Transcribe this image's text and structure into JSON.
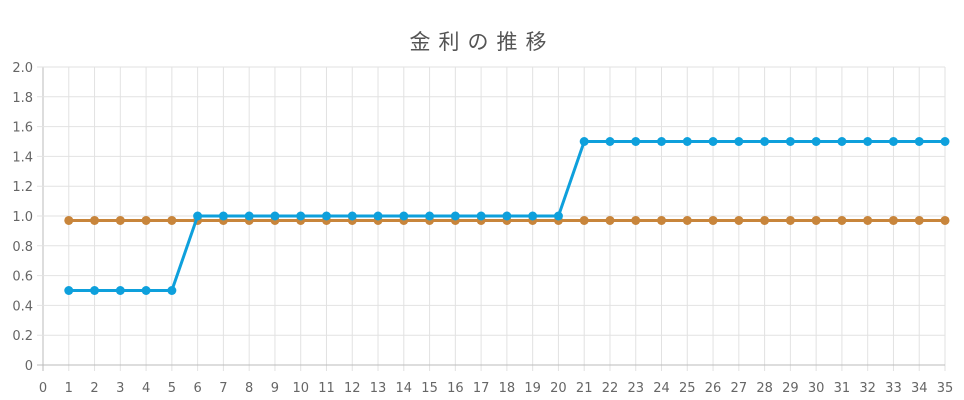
{
  "chart_data": {
    "type": "line",
    "title": "金利の推移",
    "xlabel": "",
    "ylabel": "",
    "x": [
      1,
      2,
      3,
      4,
      5,
      6,
      7,
      8,
      9,
      10,
      11,
      12,
      13,
      14,
      15,
      16,
      17,
      18,
      19,
      20,
      21,
      22,
      23,
      24,
      25,
      26,
      27,
      28,
      29,
      30,
      31,
      32,
      33,
      34,
      35
    ],
    "xlim": [
      0,
      35
    ],
    "ylim": [
      0,
      2.0
    ],
    "x_ticks": [
      "0",
      "1",
      "2",
      "3",
      "4",
      "5",
      "6",
      "7",
      "8",
      "9",
      "10",
      "11",
      "12",
      "13",
      "14",
      "15",
      "16",
      "17",
      "18",
      "19",
      "20",
      "21",
      "22",
      "23",
      "24",
      "25",
      "26",
      "27",
      "28",
      "29",
      "30",
      "31",
      "32",
      "33",
      "34",
      "35"
    ],
    "y_ticks": [
      "0",
      "0.2",
      "0.4",
      "0.6",
      "0.8",
      "1.0",
      "1.2",
      "1.4",
      "1.6",
      "1.8",
      "2.0"
    ],
    "grid": true,
    "legend": "none",
    "series": [
      {
        "color": "#c8853b",
        "values": [
          0.97,
          0.97,
          0.97,
          0.97,
          0.97,
          0.97,
          0.97,
          0.97,
          0.97,
          0.97,
          0.97,
          0.97,
          0.97,
          0.97,
          0.97,
          0.97,
          0.97,
          0.97,
          0.97,
          0.97,
          0.97,
          0.97,
          0.97,
          0.97,
          0.97,
          0.97,
          0.97,
          0.97,
          0.97,
          0.97,
          0.97,
          0.97,
          0.97,
          0.97,
          0.97
        ]
      },
      {
        "color": "#0ea0dc",
        "values": [
          0.5,
          0.5,
          0.5,
          0.5,
          0.5,
          1.0,
          1.0,
          1.0,
          1.0,
          1.0,
          1.0,
          1.0,
          1.0,
          1.0,
          1.0,
          1.0,
          1.0,
          1.0,
          1.0,
          1.0,
          1.5,
          1.5,
          1.5,
          1.5,
          1.5,
          1.5,
          1.5,
          1.5,
          1.5,
          1.5,
          1.5,
          1.5,
          1.5,
          1.5,
          1.5
        ]
      }
    ],
    "colors": {
      "grid": "#e2e2e2",
      "axis": "#bbbbbb",
      "tick_text": "#666666",
      "title_text": "#555555"
    }
  }
}
